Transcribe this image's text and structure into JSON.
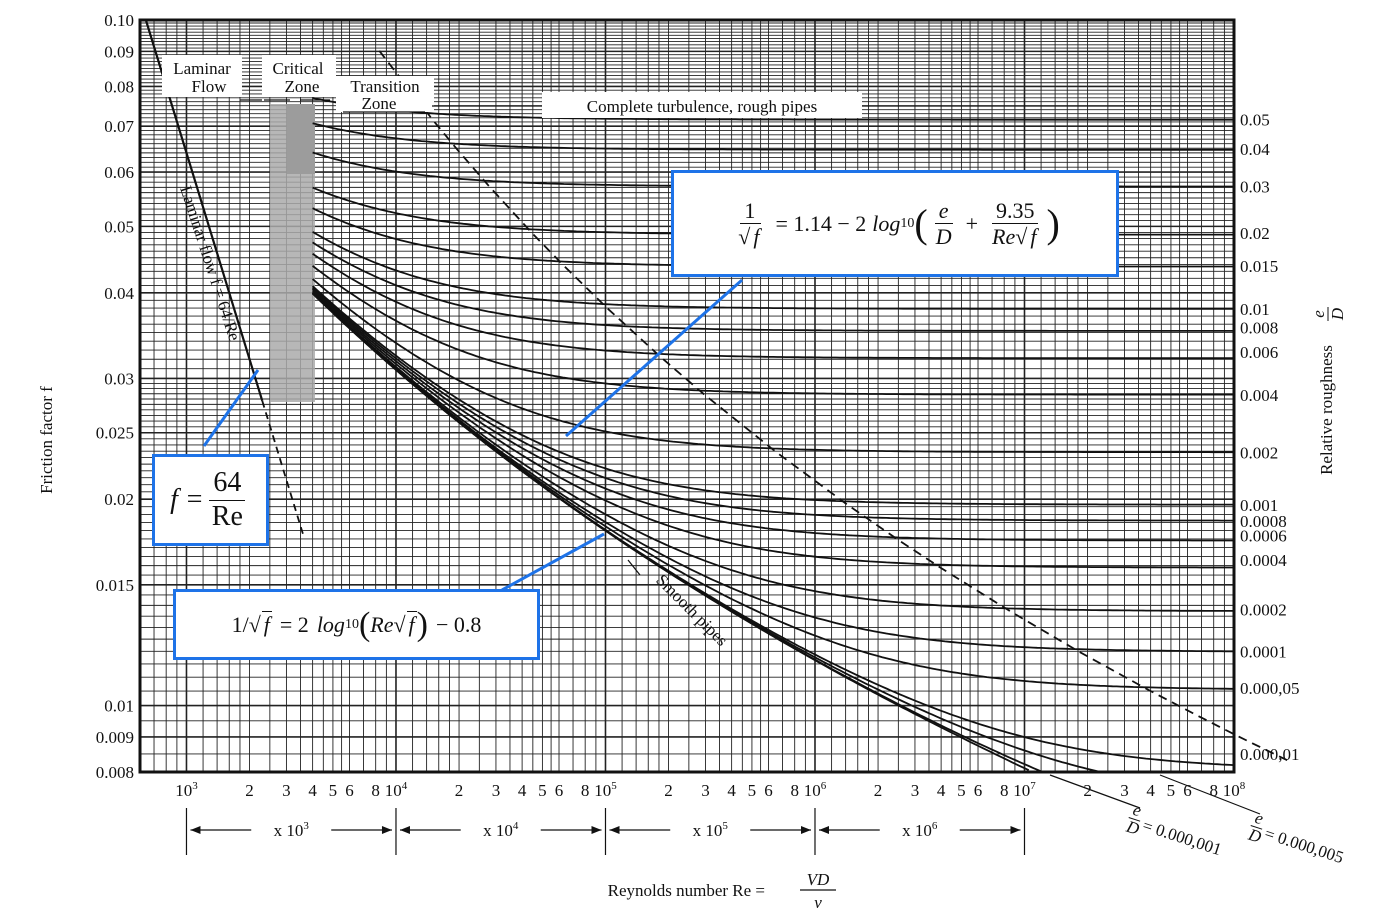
{
  "chart_data": {
    "type": "line",
    "xscale": "log",
    "yscale": "log",
    "xlim": [
      600,
      100000000
    ],
    "ylim": [
      0.008,
      0.1
    ],
    "grid": true,
    "xlabel": "Reynolds number  Re = VD/ν",
    "xlabel_prefix": "Reynolds number  Re =",
    "xlabel_num": "VD",
    "xlabel_den": "ν",
    "ylabel": "Friction factor f",
    "y2label": "Relative roughness e/D",
    "y2label_prefix": "Relative roughness",
    "y2label_num": "e",
    "y2label_den": "D",
    "y_ticks": [
      {
        "value": 0.1,
        "label": "0.10"
      },
      {
        "value": 0.09,
        "label": "0.09"
      },
      {
        "value": 0.08,
        "label": "0.08"
      },
      {
        "value": 0.07,
        "label": "0.07"
      },
      {
        "value": 0.06,
        "label": "0.06"
      },
      {
        "value": 0.05,
        "label": "0.05"
      },
      {
        "value": 0.04,
        "label": "0.04"
      },
      {
        "value": 0.03,
        "label": "0.03"
      },
      {
        "value": 0.025,
        "label": "0.025"
      },
      {
        "value": 0.02,
        "label": "0.02"
      },
      {
        "value": 0.015,
        "label": "0.015"
      },
      {
        "value": 0.01,
        "label": "0.01"
      },
      {
        "value": 0.009,
        "label": "0.009"
      },
      {
        "value": 0.008,
        "label": "0.008"
      }
    ],
    "x_ticks": [
      {
        "value": 1000,
        "label": "10",
        "exp": "3"
      },
      {
        "value": 2000,
        "label": "2"
      },
      {
        "value": 3000,
        "label": "3"
      },
      {
        "value": 4000,
        "label": "4"
      },
      {
        "value": 5000,
        "label": "5"
      },
      {
        "value": 6000,
        "label": "6"
      },
      {
        "value": 8000,
        "label": "8"
      },
      {
        "value": 10000,
        "label": "10",
        "exp": "4"
      },
      {
        "value": 20000,
        "label": "2"
      },
      {
        "value": 30000,
        "label": "3"
      },
      {
        "value": 40000,
        "label": "4"
      },
      {
        "value": 50000,
        "label": "5"
      },
      {
        "value": 60000,
        "label": "6"
      },
      {
        "value": 80000,
        "label": "8"
      },
      {
        "value": 100000,
        "label": "10",
        "exp": "5"
      },
      {
        "value": 200000,
        "label": "2"
      },
      {
        "value": 300000,
        "label": "3"
      },
      {
        "value": 400000,
        "label": "4"
      },
      {
        "value": 500000,
        "label": "5"
      },
      {
        "value": 600000,
        "label": "6"
      },
      {
        "value": 800000,
        "label": "8"
      },
      {
        "value": 1000000,
        "label": "10",
        "exp": "6"
      },
      {
        "value": 2000000,
        "label": "2"
      },
      {
        "value": 3000000,
        "label": "3"
      },
      {
        "value": 4000000,
        "label": "4"
      },
      {
        "value": 5000000,
        "label": "5"
      },
      {
        "value": 6000000,
        "label": "6"
      },
      {
        "value": 8000000,
        "label": "8"
      },
      {
        "value": 10000000,
        "label": "10",
        "exp": "7"
      },
      {
        "value": 20000000,
        "label": "2"
      },
      {
        "value": 30000000,
        "label": "3"
      },
      {
        "value": 40000000,
        "label": "4"
      },
      {
        "value": 50000000,
        "label": "5"
      },
      {
        "value": 60000000,
        "label": "6"
      },
      {
        "value": 80000000,
        "label": "8"
      },
      {
        "value": 100000000,
        "label": "10",
        "exp": "8"
      }
    ],
    "roughness_curves": [
      {
        "ed": 0.05,
        "label": "0.05",
        "f_right": 0.0716
      },
      {
        "ed": 0.04,
        "label": "0.04",
        "f_right": 0.0648
      },
      {
        "ed": 0.03,
        "label": "0.03",
        "f_right": 0.0572
      },
      {
        "ed": 0.02,
        "label": "0.02",
        "f_right": 0.0489
      },
      {
        "ed": 0.015,
        "label": "0.015",
        "f_right": 0.0438
      },
      {
        "ed": 0.01,
        "label": "0.01",
        "f_right": 0.0379
      },
      {
        "ed": 0.008,
        "label": "0.008",
        "f_right": 0.0356
      },
      {
        "ed": 0.006,
        "label": "0.006",
        "f_right": 0.0328
      },
      {
        "ed": 0.004,
        "label": "0.004",
        "f_right": 0.0284
      },
      {
        "ed": 0.002,
        "label": "0.002",
        "f_right": 0.0234
      },
      {
        "ed": 0.001,
        "label": "0.001",
        "f_right": 0.0196
      },
      {
        "ed": 0.0008,
        "label": "0.0008",
        "f_right": 0.0186
      },
      {
        "ed": 0.0006,
        "label": "0.0006",
        "f_right": 0.0177
      },
      {
        "ed": 0.0004,
        "label": "0.0004",
        "f_right": 0.0163
      },
      {
        "ed": 0.0002,
        "label": "0.0002",
        "f_right": 0.0138
      },
      {
        "ed": 0.0001,
        "label": "0.0001",
        "f_right": 0.012
      },
      {
        "ed": 5e-05,
        "label": "0.000,05",
        "f_right": 0.0106
      },
      {
        "ed": 1e-05,
        "label": "0.000,01",
        "f_right": 0.0085
      }
    ],
    "extra_curves": [
      {
        "ed": 5e-06
      },
      {
        "ed": 1e-06
      }
    ],
    "annotations": {
      "laminar_flow": [
        "Laminar",
        "Flow"
      ],
      "critical_zone": [
        "Critical",
        "Zone"
      ],
      "transition_zone": [
        "Transition",
        "Zone"
      ],
      "complete_turbulence": "Complete turbulence, rough pipes",
      "laminar_line": "Laminar flow  f = 64/Re",
      "smooth_pipes": "Smooth pipes",
      "ed_000001": "= 0.000,001",
      "ed_000005": "= 0.000,005",
      "ed_prefix_num": "e",
      "ed_prefix_den": "D"
    },
    "decade_arrows": [
      {
        "label": "x 10",
        "exp": "3"
      },
      {
        "label": "x 10",
        "exp": "4"
      },
      {
        "label": "x 10",
        "exp": "5"
      },
      {
        "label": "x 10",
        "exp": "6"
      }
    ],
    "equations": {
      "laminar": {
        "lhs": "f =",
        "num": "64",
        "den": "Re"
      },
      "colebrook": {
        "one": "1",
        "sqrt_f": "f",
        "rhs1": "= 1.14 − 2",
        "log": "log",
        "base": "10",
        "e": "e",
        "D": "D",
        "plus": "+",
        "num": "9.35",
        "Re": "Re",
        "f": "f"
      },
      "smooth": {
        "lhs": "1/",
        "f": "f",
        "mid": "= 2",
        "log": "log",
        "base": "10",
        "Re": "Re",
        "f2": "f",
        "end": "− 0.8"
      }
    }
  }
}
